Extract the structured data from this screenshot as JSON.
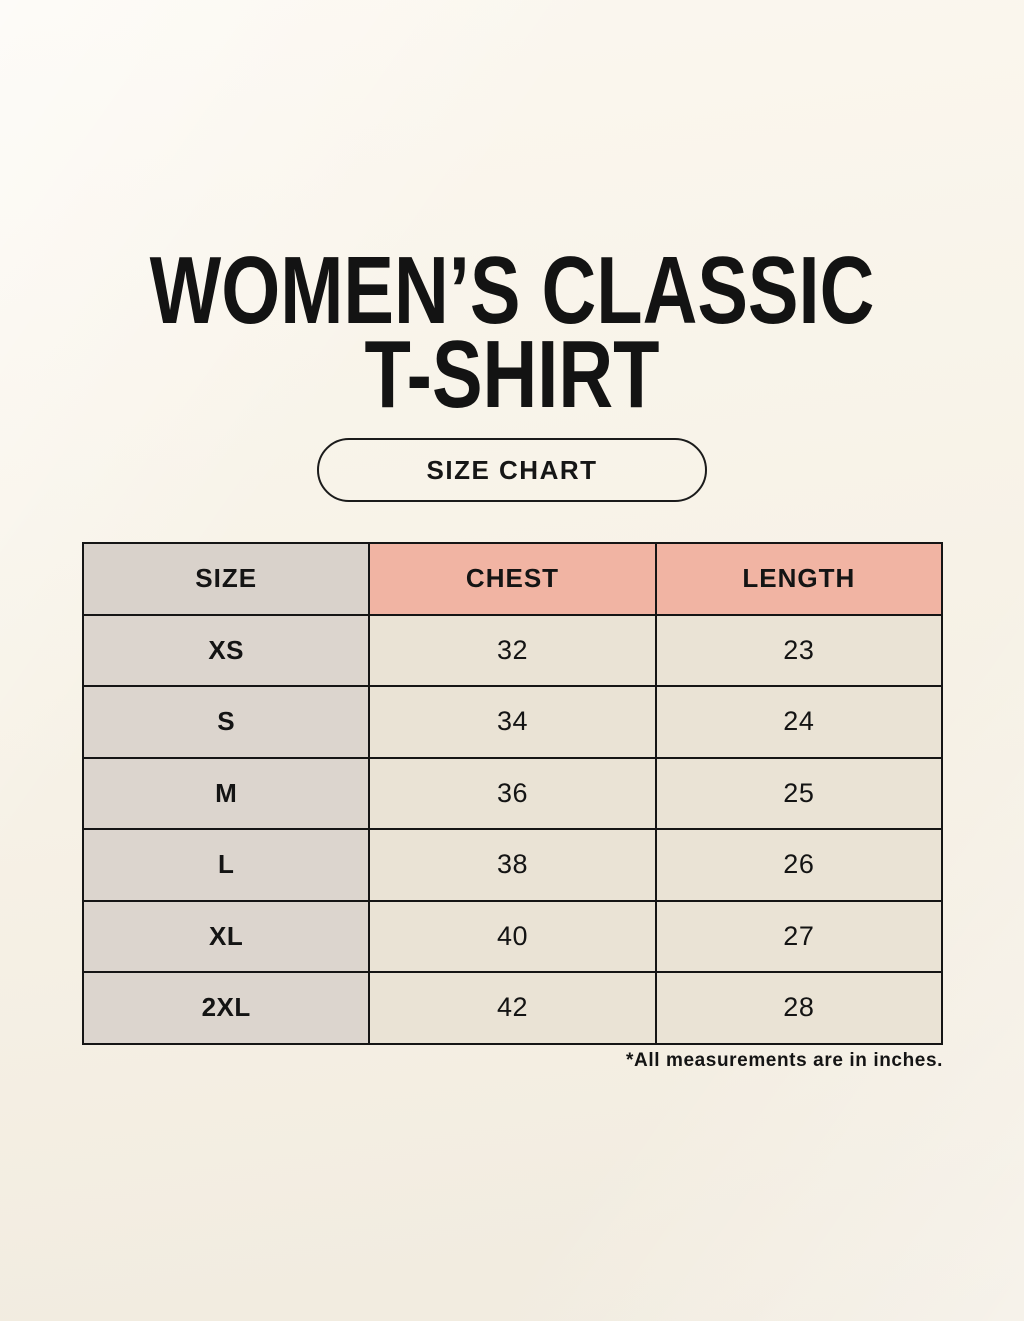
{
  "header": {
    "title_line1": "WOMEN’S CLASSIC",
    "title_line2": "T-SHIRT",
    "badge_label": "SIZE CHART"
  },
  "chart_data": {
    "type": "table",
    "title": "WOMEN’S CLASSIC T-SHIRT",
    "columns": [
      "SIZE",
      "CHEST",
      "LENGTH"
    ],
    "rows": [
      [
        "XS",
        "32",
        "23"
      ],
      [
        "S",
        "34",
        "24"
      ],
      [
        "M",
        "36",
        "25"
      ],
      [
        "L",
        "38",
        "26"
      ],
      [
        "XL",
        "40",
        "27"
      ],
      [
        "2XL",
        "42",
        "28"
      ]
    ],
    "units_note": "*All measurements are in inches.",
    "layout": {
      "columns_equal_width": true,
      "header_label_bg": "#d9d2cb",
      "header_measure_bg": "#f1b4a3",
      "row_label_bg": "#dcd5ce",
      "row_value_bg": "#eae3d5",
      "border_color": "#151515",
      "page_bg_top": "#fbf7ef",
      "page_bg_bottom": "#f1ebdf",
      "text_color": "#141414"
    }
  }
}
